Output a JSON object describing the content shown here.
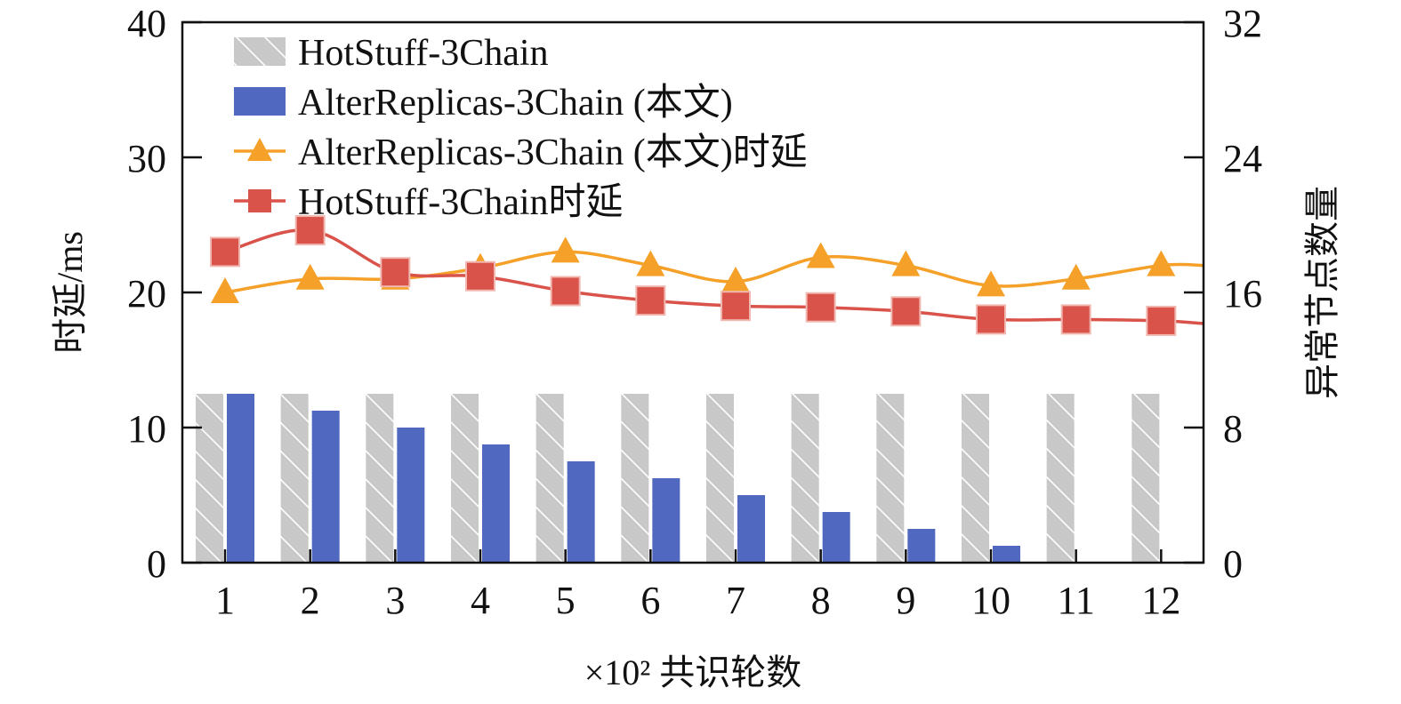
{
  "chart_data": {
    "type": "bar",
    "xlabel": "×10² 共识轮数",
    "ylabel_left": "时延/ms",
    "ylabel_right": "异常节点数量",
    "categories": [
      "1",
      "2",
      "3",
      "4",
      "5",
      "6",
      "7",
      "8",
      "9",
      "10",
      "11",
      "12"
    ],
    "ylim_left": [
      0,
      40
    ],
    "yticks_left": [
      "0",
      "10",
      "20",
      "30",
      "40"
    ],
    "ylim_right": [
      0,
      32
    ],
    "yticks_right": [
      "0",
      "8",
      "16",
      "24",
      "32"
    ],
    "grid": false,
    "legend_position": "top-left",
    "bar_series": [
      {
        "name": "HotStuff-3Chain",
        "color": "#c8c8c8",
        "pattern": "hatch",
        "axis": "right",
        "values": [
          10,
          10,
          10,
          10,
          10,
          10,
          10,
          10,
          10,
          10,
          10,
          10
        ]
      },
      {
        "name": "AlterReplicas-3Chain (本文)",
        "color": "#5068c0",
        "axis": "right",
        "values": [
          10,
          9,
          8,
          7,
          6,
          5,
          4,
          3,
          2,
          1,
          0,
          0
        ]
      }
    ],
    "line_series": [
      {
        "name": "AlterReplicas-3Chain (本文)时延",
        "color": "#f5a028",
        "marker": "triangle",
        "axis": "left",
        "values": [
          20,
          21,
          21,
          21.8,
          23,
          22,
          20.8,
          22.6,
          22,
          20.5,
          21,
          22
        ]
      },
      {
        "name": "HotStuff-3Chain时延",
        "color": "#d9534a",
        "marker": "square",
        "axis": "left",
        "values": [
          23,
          24.6,
          21.5,
          21.2,
          20.1,
          19.4,
          19,
          18.9,
          18.6,
          18,
          18,
          17.9
        ]
      }
    ]
  }
}
